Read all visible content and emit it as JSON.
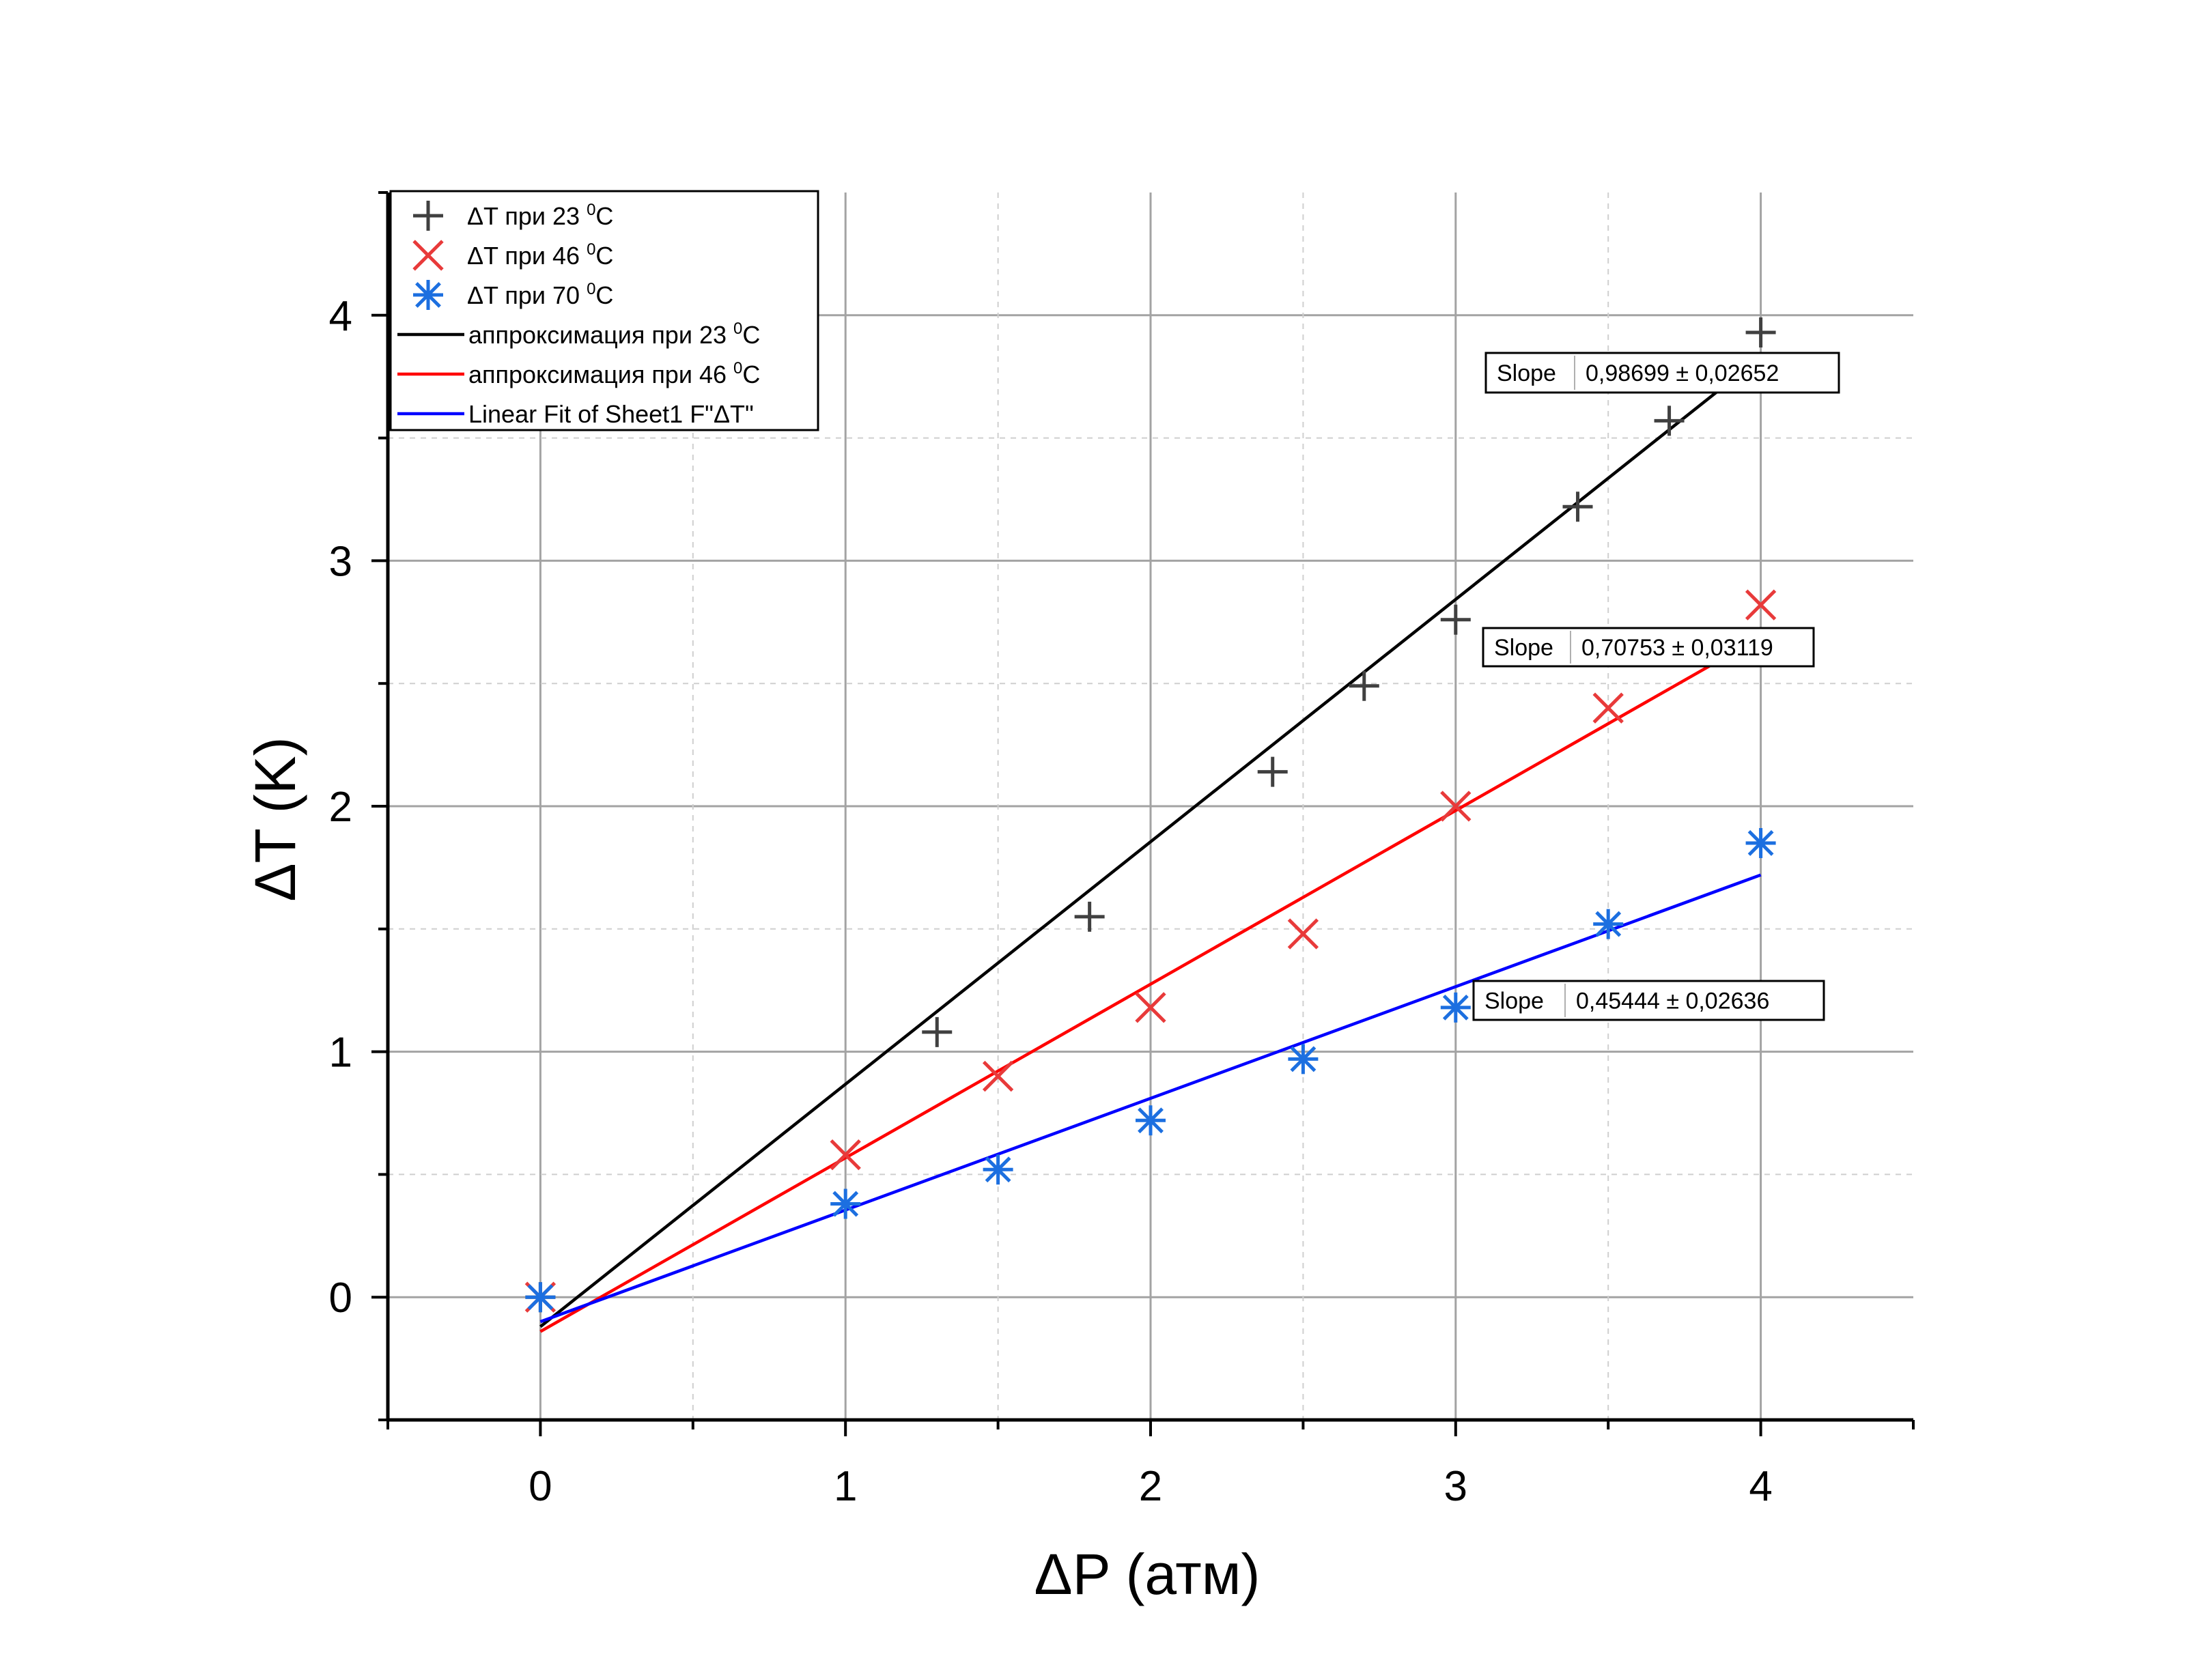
{
  "chart_data": {
    "type": "scatter",
    "xlabel": "ΔP (атм)",
    "ylabel": "ΔT (K)",
    "xlim": [
      -0.5,
      4.5
    ],
    "ylim": [
      -0.5,
      4.5
    ],
    "xticks": [
      "0",
      "1",
      "2",
      "3",
      "4"
    ],
    "yticks": [
      "0",
      "1",
      "2",
      "3",
      "4"
    ],
    "grid": true,
    "legend_position": "top-left",
    "series": [
      {
        "name": "ΔT при 23 ⁰C",
        "marker": "plus",
        "color": "#404040",
        "x": [
          0,
          1.3,
          1.8,
          2.4,
          2.7,
          3.0,
          3.4,
          3.7,
          4.0
        ],
        "y": [
          0,
          1.08,
          1.55,
          2.14,
          2.49,
          2.76,
          3.22,
          3.57,
          3.93
        ]
      },
      {
        "name": "ΔT при 46 ⁰C",
        "marker": "x",
        "color": "#e83a3a",
        "x": [
          0,
          1.0,
          1.5,
          2.0,
          2.5,
          3.0,
          3.5,
          4.0
        ],
        "y": [
          0,
          0.58,
          0.9,
          1.18,
          1.48,
          2.0,
          2.4,
          2.82
        ]
      },
      {
        "name": "ΔT при 70 ⁰C",
        "marker": "asterisk",
        "color": "#1c6fe0",
        "x": [
          0,
          1.0,
          1.5,
          2.0,
          2.5,
          3.0,
          3.5,
          4.0
        ],
        "y": [
          0,
          0.38,
          0.52,
          0.72,
          0.97,
          1.18,
          1.52,
          1.85
        ]
      }
    ],
    "fits": [
      {
        "name": "аппроксимация при 23 ⁰C",
        "color": "#000000",
        "x": [
          0,
          4.0
        ],
        "y": [
          -0.12,
          3.83
        ],
        "slope_label": "Slope",
        "slope_value": "0,98699 ± 0,02652"
      },
      {
        "name": "аппроксимация при 46 ⁰C",
        "color": "#ff0000",
        "x": [
          0,
          4.0
        ],
        "y": [
          -0.14,
          2.69
        ],
        "slope_label": "Slope",
        "slope_value": "0,70753 ± 0,03119"
      },
      {
        "name": "Linear Fit of Sheet1 F\"ΔT\"",
        "color": "#0000ff",
        "x": [
          0,
          4.0
        ],
        "y": [
          -0.1,
          1.72
        ],
        "slope_label": "Slope",
        "slope_value": "0,45444 ± 0,02636"
      }
    ]
  },
  "legend": {
    "entries": [
      {
        "main": "ΔT при 23 ",
        "sup": "0",
        "suffix": "C"
      },
      {
        "main": "ΔT при 46 ",
        "sup": "0",
        "suffix": "C"
      },
      {
        "main": "ΔT при 70 ",
        "sup": "0",
        "suffix": "C"
      },
      {
        "main": "аппроксимация при 23 ",
        "sup": "0",
        "suffix": "C"
      },
      {
        "main": "аппроксимация при 46 ",
        "sup": "0",
        "suffix": "C"
      },
      {
        "main": "Linear Fit of Sheet1 F\"ΔT\"",
        "sup": "",
        "suffix": ""
      }
    ]
  }
}
